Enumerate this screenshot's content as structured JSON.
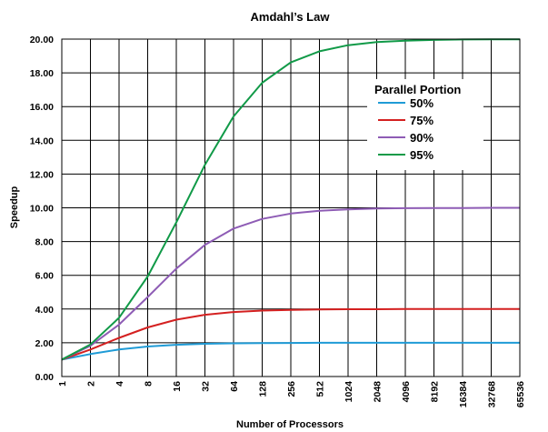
{
  "chart_data": {
    "type": "line",
    "title": "Amdahl’s Law",
    "xlabel": "Number of Processors",
    "ylabel": "Speedup",
    "x_scale": "log2",
    "ylim": [
      0,
      20
    ],
    "grid": true,
    "legend_title": "Parallel Portion",
    "legend_position": "right",
    "categories": [
      "1",
      "2",
      "4",
      "8",
      "16",
      "32",
      "64",
      "128",
      "256",
      "512",
      "1024",
      "2048",
      "4096",
      "8192",
      "16384",
      "32768",
      "65536"
    ],
    "yticks": [
      "0.00",
      "2.00",
      "4.00",
      "6.00",
      "8.00",
      "10.00",
      "12.00",
      "14.00",
      "16.00",
      "18.00",
      "20.00"
    ],
    "series": [
      {
        "name": "50%",
        "color": "#1f9bd6",
        "values": [
          1.0,
          1.33,
          1.6,
          1.78,
          1.88,
          1.94,
          1.97,
          1.98,
          1.99,
          2.0,
          2.0,
          2.0,
          2.0,
          2.0,
          2.0,
          2.0,
          2.0
        ]
      },
      {
        "name": "75%",
        "color": "#d42020",
        "values": [
          1.0,
          1.6,
          2.29,
          2.91,
          3.37,
          3.66,
          3.82,
          3.91,
          3.95,
          3.98,
          3.99,
          3.99,
          4.0,
          4.0,
          4.0,
          4.0,
          4.0
        ]
      },
      {
        "name": "90%",
        "color": "#8e5cb5",
        "values": [
          1.0,
          1.82,
          3.08,
          4.71,
          6.4,
          7.8,
          8.77,
          9.34,
          9.66,
          9.83,
          9.91,
          9.96,
          9.98,
          9.99,
          9.99,
          10.0,
          10.0
        ]
      },
      {
        "name": "95%",
        "color": "#119a48",
        "values": [
          1.0,
          1.9,
          3.48,
          5.93,
          9.14,
          12.55,
          15.42,
          17.41,
          18.62,
          19.28,
          19.64,
          19.82,
          19.91,
          19.95,
          19.98,
          19.99,
          19.99
        ]
      }
    ]
  }
}
